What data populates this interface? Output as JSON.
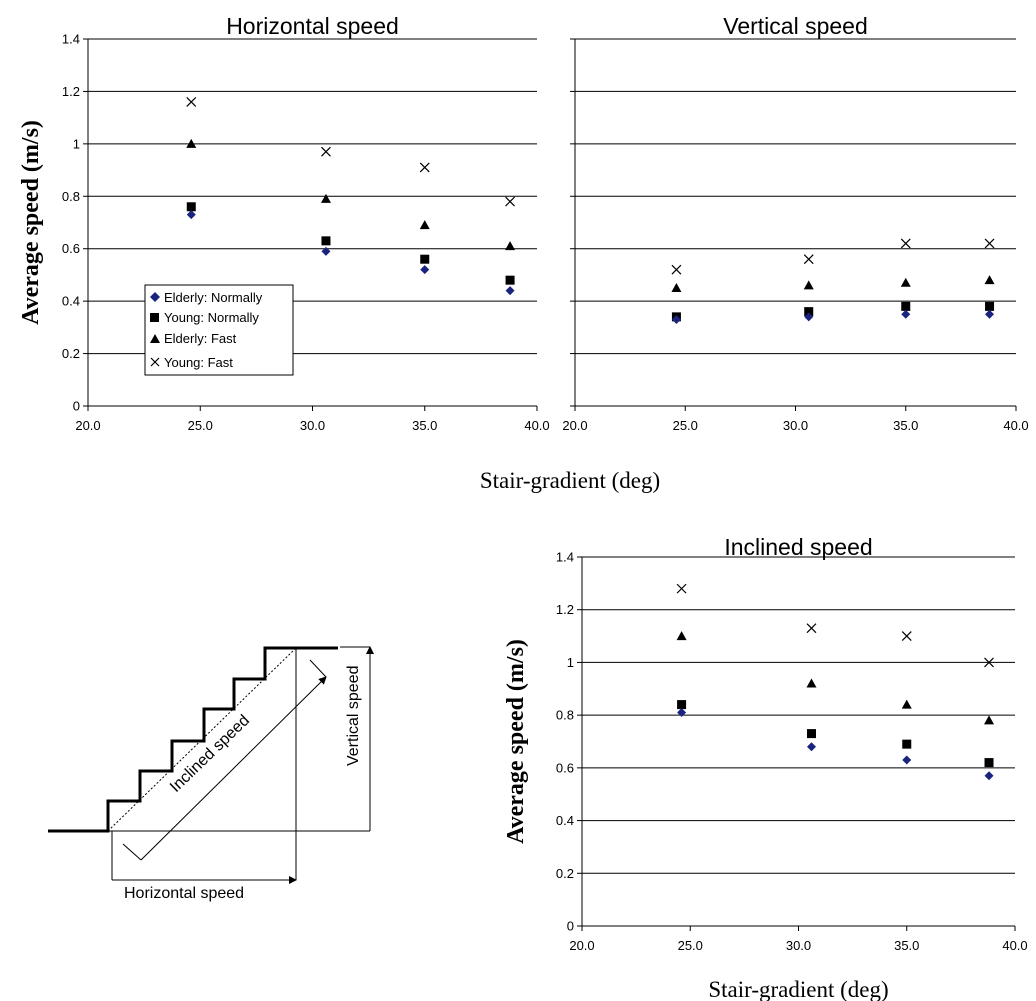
{
  "shared_xlabel": "Stair-gradient (deg)",
  "legend_labels": {
    "elderly_normal": "Elderly: Normally",
    "young_normal": "Young: Normally",
    "elderly_fast": "Elderly: Fast",
    "young_fast": "Young: Fast"
  },
  "diagram": {
    "horizontal_label": "Horizontal speed",
    "vertical_label": "Vertical speed",
    "inclined_label": "Inclined speed"
  },
  "chart_data": [
    {
      "type": "scatter",
      "title": "Horizontal speed",
      "xlabel": "",
      "ylabel": "Average speed (m/s)",
      "xlim": [
        20,
        40
      ],
      "ylim": [
        0,
        1.4
      ],
      "x_ticks": [
        "20.0",
        "25.0",
        "30.0",
        "35.0",
        "40.0"
      ],
      "y_ticks": [
        "0",
        "0.2",
        "0.4",
        "0.6",
        "0.8",
        "1",
        "1.2",
        "1.4"
      ],
      "grid": "horizontal",
      "legend": "bottom-left",
      "series": [
        {
          "name": "Elderly: Normally",
          "marker": "diamond",
          "color": "#1a237e",
          "x": [
            24.6,
            30.6,
            35.0,
            38.8
          ],
          "y": [
            0.73,
            0.59,
            0.52,
            0.44
          ]
        },
        {
          "name": "Young: Normally",
          "marker": "square",
          "color": "#000000",
          "x": [
            24.6,
            30.6,
            35.0,
            38.8
          ],
          "y": [
            0.76,
            0.63,
            0.56,
            0.48
          ]
        },
        {
          "name": "Elderly: Fast",
          "marker": "triangle",
          "color": "#000000",
          "x": [
            24.6,
            30.6,
            35.0,
            38.8
          ],
          "y": [
            1.0,
            0.79,
            0.69,
            0.61
          ]
        },
        {
          "name": "Young: Fast",
          "marker": "cross",
          "color": "#000000",
          "x": [
            24.6,
            30.6,
            35.0,
            38.8
          ],
          "y": [
            1.16,
            0.97,
            0.91,
            0.78
          ]
        }
      ]
    },
    {
      "type": "scatter",
      "title": "Vertical speed",
      "xlabel": "",
      "ylabel": "",
      "xlim": [
        20,
        40
      ],
      "ylim": [
        0,
        1.4
      ],
      "x_ticks": [
        "20.0",
        "25.0",
        "30.0",
        "35.0",
        "40.0"
      ],
      "y_ticks": [],
      "grid": "horizontal",
      "legend": "none",
      "series": [
        {
          "marker": "diamond",
          "color": "#1a237e",
          "x": [
            24.6,
            30.6,
            35.0,
            38.8
          ],
          "y": [
            0.33,
            0.34,
            0.35,
            0.35
          ]
        },
        {
          "marker": "square",
          "color": "#000000",
          "x": [
            24.6,
            30.6,
            35.0,
            38.8
          ],
          "y": [
            0.34,
            0.36,
            0.38,
            0.38
          ]
        },
        {
          "marker": "triangle",
          "color": "#000000",
          "x": [
            24.6,
            30.6,
            35.0,
            38.8
          ],
          "y": [
            0.45,
            0.46,
            0.47,
            0.48
          ]
        },
        {
          "marker": "cross",
          "color": "#000000",
          "x": [
            24.6,
            30.6,
            35.0,
            38.8
          ],
          "y": [
            0.52,
            0.56,
            0.62,
            0.62
          ]
        }
      ]
    },
    {
      "type": "scatter",
      "title": "Inclined speed",
      "xlabel": "Stair-gradient (deg)",
      "ylabel": "Average speed (m/s)",
      "xlim": [
        20,
        40
      ],
      "ylim": [
        0,
        1.4
      ],
      "x_ticks": [
        "20.0",
        "25.0",
        "30.0",
        "35.0",
        "40.0"
      ],
      "y_ticks": [
        "0",
        "0.2",
        "0.4",
        "0.6",
        "0.8",
        "1",
        "1.2",
        "1.4"
      ],
      "grid": "horizontal",
      "legend": "none",
      "series": [
        {
          "marker": "diamond",
          "color": "#1a237e",
          "x": [
            24.6,
            30.6,
            35.0,
            38.8
          ],
          "y": [
            0.81,
            0.68,
            0.63,
            0.57
          ]
        },
        {
          "marker": "square",
          "color": "#000000",
          "x": [
            24.6,
            30.6,
            35.0,
            38.8
          ],
          "y": [
            0.84,
            0.73,
            0.69,
            0.62
          ]
        },
        {
          "marker": "triangle",
          "color": "#000000",
          "x": [
            24.6,
            30.6,
            35.0,
            38.8
          ],
          "y": [
            1.1,
            0.92,
            0.84,
            0.78
          ]
        },
        {
          "marker": "cross",
          "color": "#000000",
          "x": [
            24.6,
            30.6,
            35.0,
            38.8
          ],
          "y": [
            1.28,
            1.13,
            1.1,
            1.0
          ]
        }
      ]
    }
  ]
}
